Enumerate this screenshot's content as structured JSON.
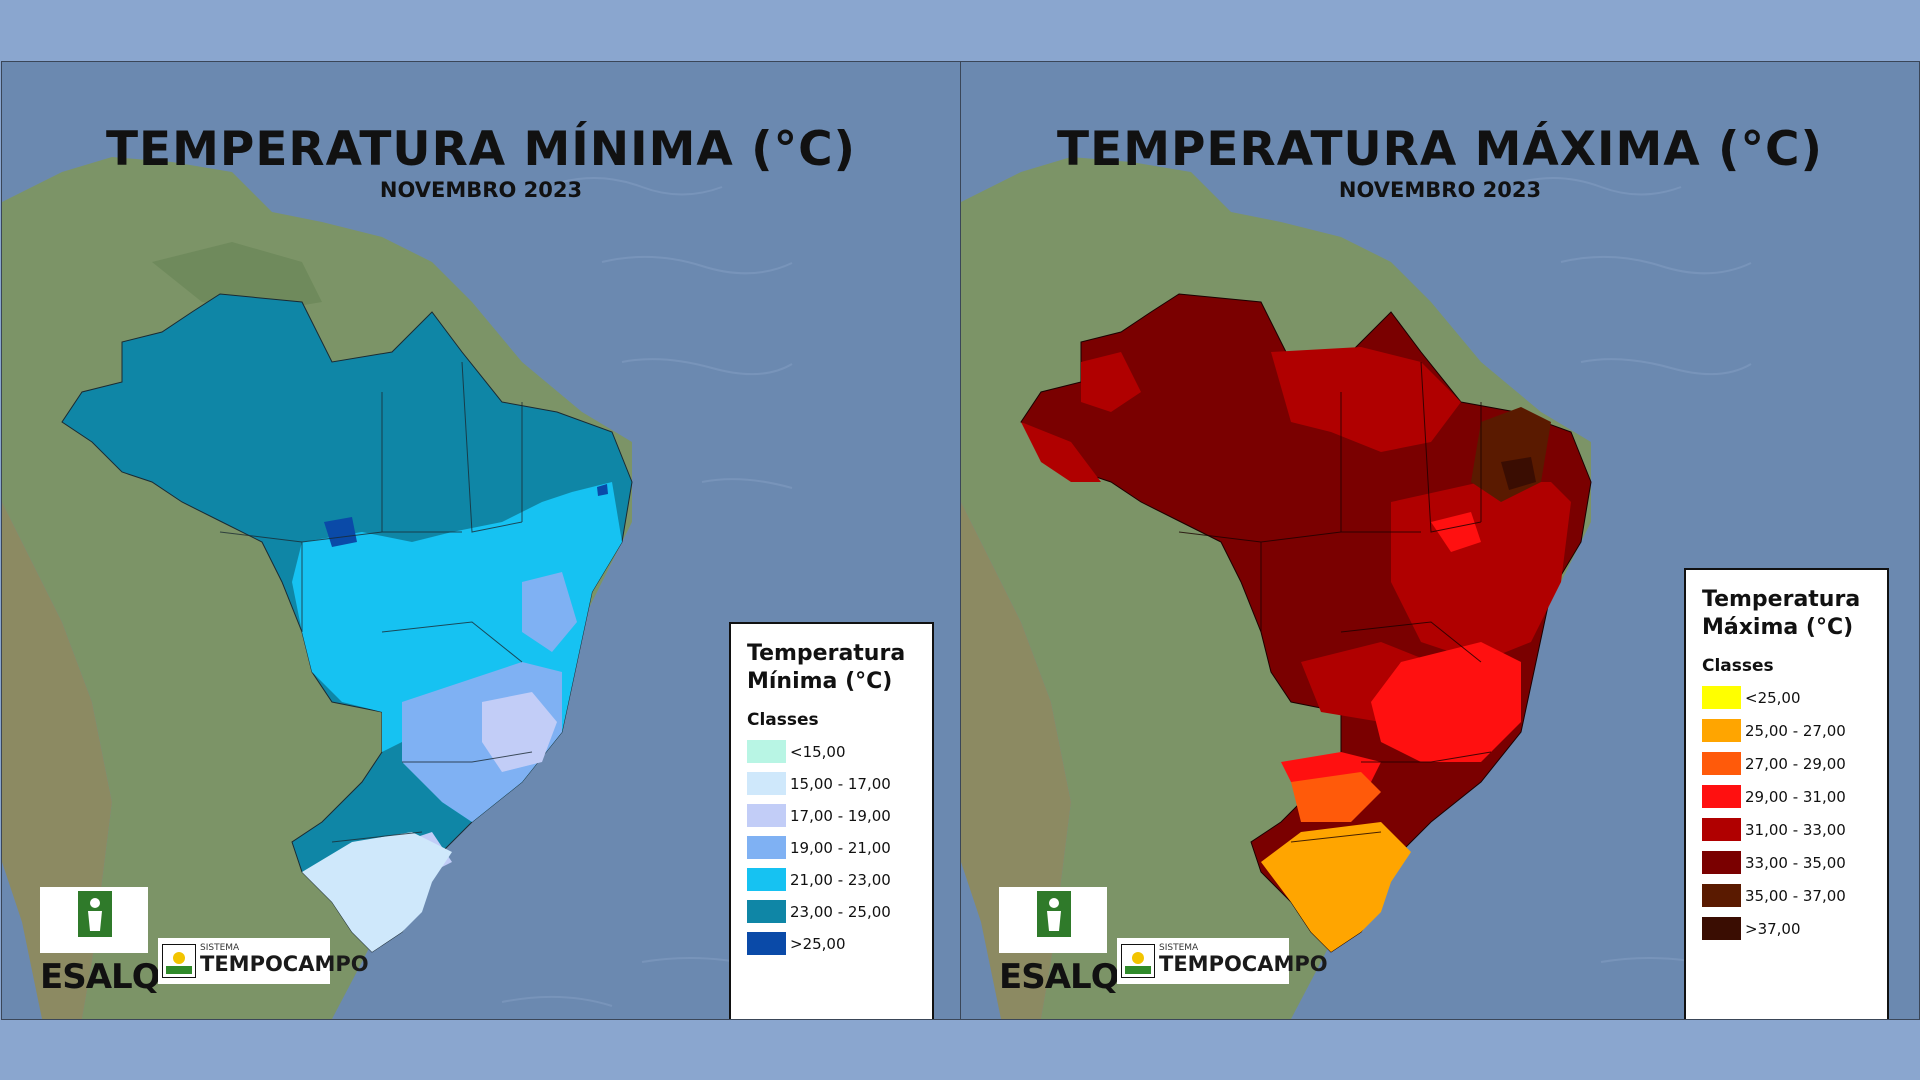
{
  "panels": [
    {
      "title": "TEMPERATURA MÍNIMA (°C)",
      "subtitle": "NOVEMBRO 2023",
      "legend": {
        "title": "Temperatura\nMínima (°C)",
        "classes_label": "Classes",
        "items": [
          {
            "label": "<15,00",
            "color": "#b8f5e4"
          },
          {
            "label": "15,00 - 17,00",
            "color": "#cfe8fb"
          },
          {
            "label": "17,00 - 19,00",
            "color": "#c2cdf7"
          },
          {
            "label": "19,00 - 21,00",
            "color": "#7fb1f3"
          },
          {
            "label": "21,00 - 23,00",
            "color": "#16c2f2"
          },
          {
            "label": "23,00 - 25,00",
            "color": "#0f86a6"
          },
          {
            "label": ">25,00",
            "color": "#0a4aa8"
          }
        ]
      }
    },
    {
      "title": "TEMPERATURA MÁXIMA (°C)",
      "subtitle": "NOVEMBRO 2023",
      "legend": {
        "title": "Temperatura\nMáxima (°C)",
        "classes_label": "Classes",
        "items": [
          {
            "label": "<25,00",
            "color": "#ffff00"
          },
          {
            "label": "25,00 - 27,00",
            "color": "#ffa500"
          },
          {
            "label": "27,00 - 29,00",
            "color": "#ff5a0a"
          },
          {
            "label": "29,00 - 31,00",
            "color": "#ff1010"
          },
          {
            "label": "31,00 - 33,00",
            "color": "#b00000"
          },
          {
            "label": "33,00 - 35,00",
            "color": "#7a0000"
          },
          {
            "label": "35,00 - 37,00",
            "color": "#5a1a00"
          },
          {
            "label": ">37,00",
            "color": "#3a0d02"
          }
        ]
      }
    }
  ],
  "logos": {
    "esalq": "ESALQ",
    "tempocampo_small": "SISTEMA",
    "tempocampo": "TEMPOCAMPO"
  }
}
